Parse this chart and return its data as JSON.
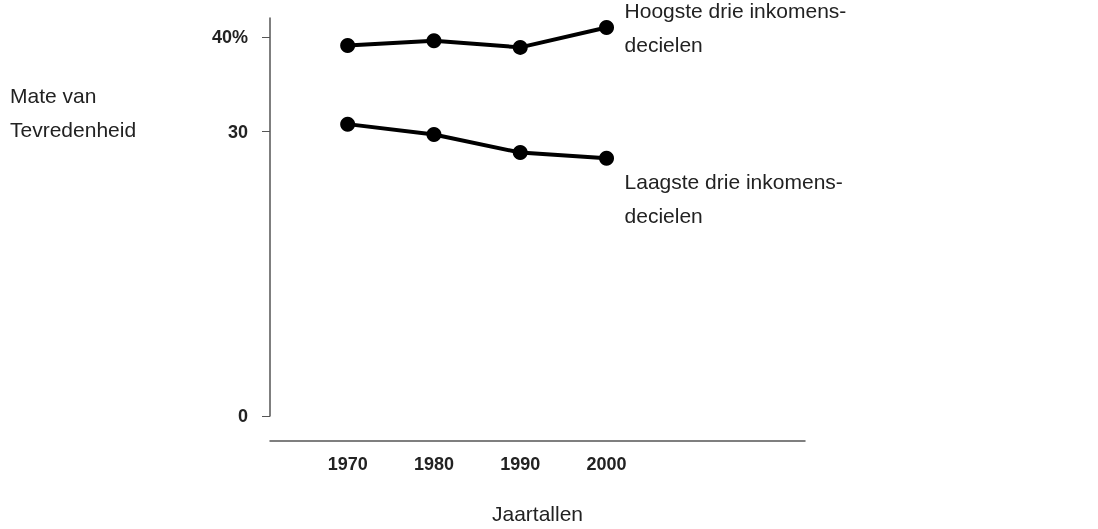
{
  "chart_data": {
    "type": "line",
    "xlabel": "Jaartallen",
    "ylabel": "Mate van\nTevredenheid",
    "x": [
      1970,
      1980,
      1990,
      2000
    ],
    "series": [
      {
        "name": "Hoogste drie inkomens-\ndecielen",
        "color": "#000000",
        "values": [
          39.1,
          39.6,
          38.9,
          41.0
        ]
      },
      {
        "name": "Laagste drie inkomens-\ndecielen",
        "color": "#000000",
        "values": [
          30.8,
          29.7,
          27.8,
          27.2
        ]
      }
    ],
    "xlim": [
      1961,
      2023
    ],
    "xticks": [
      1970,
      1980,
      1990,
      2000
    ],
    "ylim": [
      0,
      42
    ],
    "yticks": [
      0,
      30,
      {
        "value": 40,
        "label": "40%"
      }
    ],
    "marker": "circle",
    "line_style": "solid"
  }
}
